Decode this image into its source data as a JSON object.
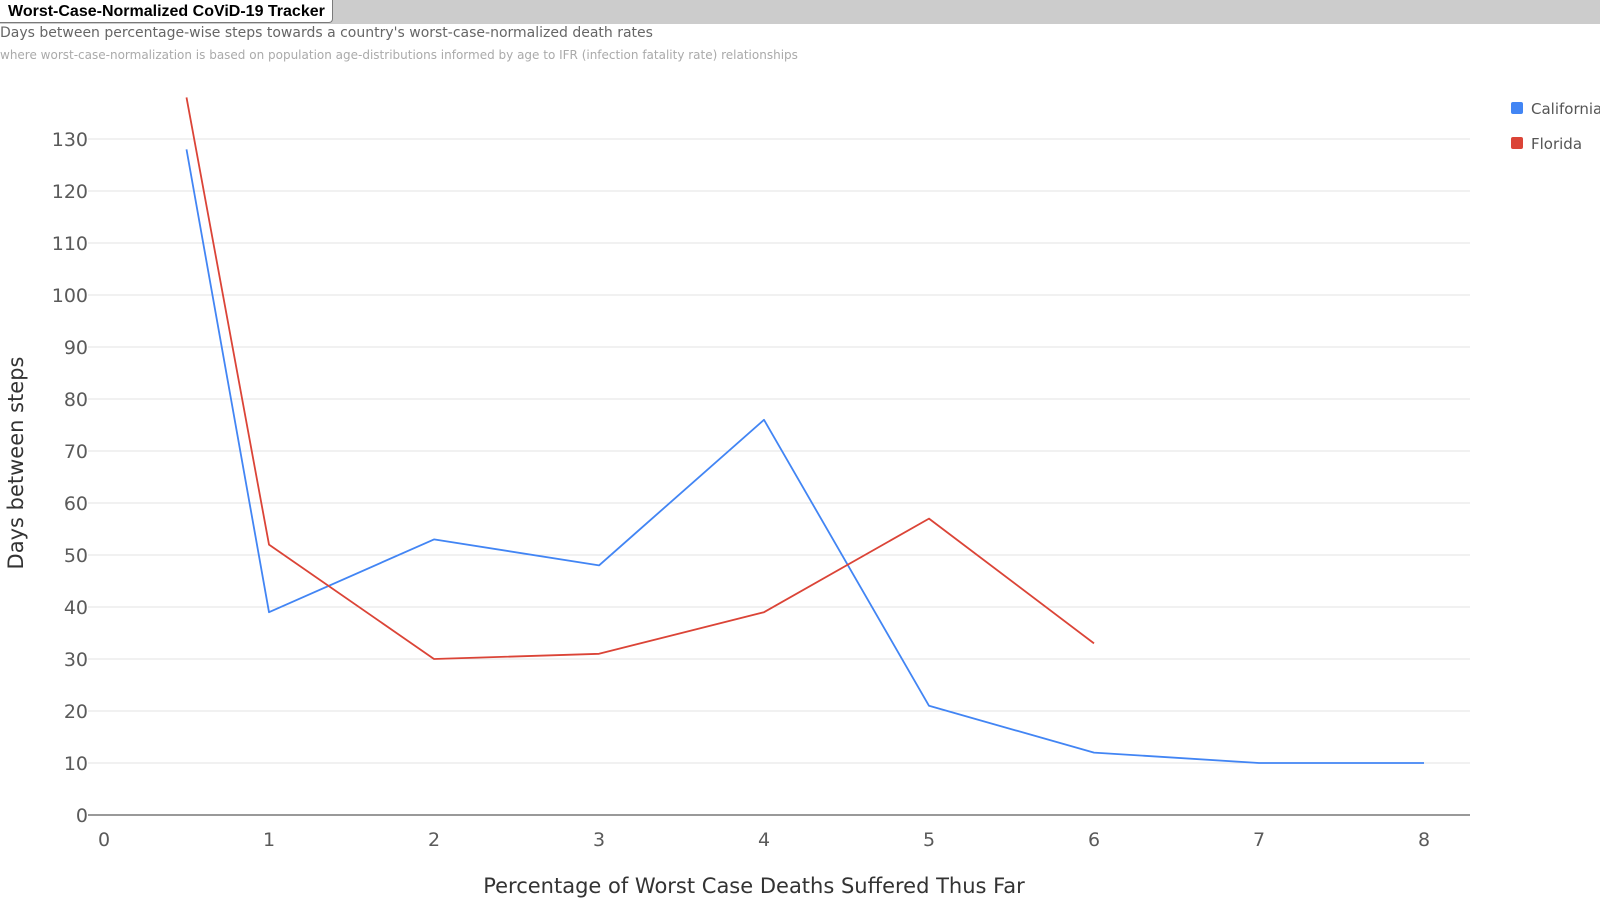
{
  "header": {
    "app_title": "Worst-Case-Normalized CoViD-19 Tracker",
    "subtitle": "Days between percentage-wise steps towards a country's worst-case-normalized death rates",
    "subtitle2": "where worst-case-normalization is based on population age-distributions informed by age to IFR (infection fatality rate) relationships"
  },
  "chart_data": {
    "type": "line",
    "xlabel": "Percentage of Worst Case Deaths Suffered Thus Far",
    "ylabel": "Days between steps",
    "xlim": [
      0,
      8
    ],
    "ylim": [
      0,
      140
    ],
    "x_ticks": [
      0,
      1,
      2,
      3,
      4,
      5,
      6,
      7,
      8
    ],
    "y_ticks": [
      0,
      10,
      20,
      30,
      40,
      50,
      60,
      70,
      80,
      90,
      100,
      110,
      120,
      130
    ],
    "grid": true,
    "legend_position": "right",
    "series": [
      {
        "name": "California",
        "color": "#4285f4",
        "points": [
          [
            0.5,
            128
          ],
          [
            1,
            39
          ],
          [
            2,
            53
          ],
          [
            3,
            48
          ],
          [
            4,
            76
          ],
          [
            5,
            21
          ],
          [
            6,
            12
          ],
          [
            7,
            10
          ],
          [
            8,
            10
          ]
        ]
      },
      {
        "name": "Florida",
        "color": "#db4437",
        "points": [
          [
            0.5,
            138
          ],
          [
            1,
            52
          ],
          [
            2,
            30
          ],
          [
            3,
            31
          ],
          [
            4,
            39
          ],
          [
            5,
            57
          ],
          [
            6,
            33
          ]
        ]
      }
    ]
  }
}
